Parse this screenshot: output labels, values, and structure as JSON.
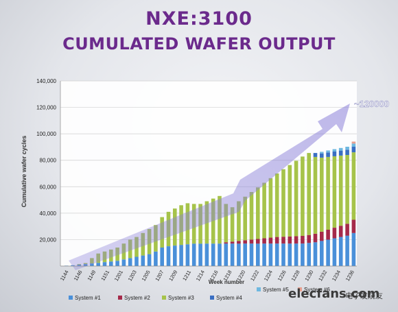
{
  "title": "NXE:3100",
  "subtitle": "CUMULATED WAFER OUTPUT",
  "watermark": {
    "site": "elecfans.com",
    "cn": "电子发烧友"
  },
  "chart_data": {
    "type": "bar",
    "stacked": true,
    "ylabel": "Cumulative wafer cycles",
    "xlabel": "Week number",
    "ylim": [
      0,
      140000
    ],
    "yticks": [
      20000,
      40000,
      60000,
      80000,
      100000,
      120000,
      140000
    ],
    "ytick_labels": [
      "20,000",
      "40,000",
      "60,000",
      "80,000",
      "100,000",
      "120,000",
      "140,000"
    ],
    "x_tick_labels": [
      "1144",
      "1146",
      "1149",
      "1151",
      "1201",
      "1203",
      "1205",
      "1207",
      "1209",
      "1211",
      "1214",
      "1216",
      "1218",
      "1220",
      "1222",
      "1224",
      "1226",
      "1228",
      "1230",
      "1232",
      "1234",
      "1236"
    ],
    "annotation": "~120000",
    "grid": "horizontal",
    "legend_position": "bottom",
    "series": [
      {
        "name": "System #1",
        "color": "#4a90d9",
        "values": [
          300,
          600,
          1000,
          1500,
          2000,
          2500,
          3000,
          3500,
          4000,
          5000,
          6000,
          7000,
          8000,
          9000,
          11000,
          14000,
          15000,
          15500,
          16000,
          16500,
          17000,
          17000,
          17000,
          17000,
          17000,
          17000,
          17000,
          17000,
          17000,
          17000,
          17000,
          17000,
          17000,
          17000,
          17000,
          17000,
          17000,
          17000,
          17500,
          18000,
          19000,
          20000,
          21000,
          22000,
          23000,
          25000
        ]
      },
      {
        "name": "System #2",
        "color": "#a52a4a",
        "values": [
          0,
          0,
          0,
          0,
          0,
          0,
          0,
          0,
          0,
          0,
          0,
          0,
          0,
          0,
          0,
          0,
          0,
          0,
          0,
          0,
          0,
          0,
          0,
          0,
          0,
          1000,
          1500,
          2000,
          2500,
          3000,
          3500,
          4000,
          4500,
          5000,
          5200,
          5400,
          5600,
          5800,
          6000,
          6500,
          7000,
          7500,
          8000,
          8500,
          9000,
          10000
        ]
      },
      {
        "name": "System #3",
        "color": "#a6c34a",
        "values": [
          0,
          0,
          500,
          800,
          4000,
          7000,
          8000,
          9000,
          10000,
          12000,
          14000,
          15000,
          17000,
          19000,
          20000,
          23000,
          26000,
          28000,
          30000,
          31000,
          30000,
          30000,
          32000,
          34000,
          36000,
          29000,
          26000,
          30000,
          33000,
          36000,
          39000,
          42000,
          45000,
          48000,
          51000,
          54000,
          57000,
          60000,
          62000,
          58000,
          56000,
          55000,
          54000,
          53000,
          52000,
          51000
        ]
      },
      {
        "name": "System #4",
        "color": "#3a6fc2",
        "values": [
          0,
          0,
          0,
          0,
          0,
          0,
          0,
          0,
          0,
          0,
          0,
          0,
          0,
          0,
          0,
          0,
          0,
          0,
          0,
          0,
          0,
          0,
          0,
          0,
          0,
          0,
          0,
          0,
          0,
          0,
          0,
          0,
          0,
          0,
          0,
          0,
          0,
          0,
          0,
          3000,
          3200,
          3400,
          3600,
          3800,
          4000,
          4200
        ]
      },
      {
        "name": "System #5",
        "color": "#6fb8e0",
        "values": [
          0,
          0,
          0,
          0,
          0,
          0,
          0,
          0,
          0,
          0,
          0,
          0,
          0,
          0,
          0,
          0,
          0,
          0,
          0,
          0,
          0,
          0,
          0,
          0,
          0,
          0,
          0,
          0,
          0,
          0,
          0,
          0,
          0,
          0,
          0,
          0,
          0,
          0,
          0,
          0,
          1200,
          1500,
          1800,
          2000,
          2200,
          2400
        ]
      },
      {
        "name": "System #6",
        "color": "#e8a090",
        "values": [
          0,
          0,
          0,
          0,
          0,
          0,
          0,
          0,
          0,
          0,
          0,
          0,
          0,
          0,
          0,
          0,
          0,
          0,
          0,
          0,
          0,
          0,
          0,
          0,
          0,
          0,
          0,
          0,
          0,
          0,
          0,
          0,
          0,
          0,
          0,
          0,
          0,
          0,
          0,
          0,
          0,
          0,
          0,
          0,
          0,
          1500
        ]
      }
    ]
  }
}
